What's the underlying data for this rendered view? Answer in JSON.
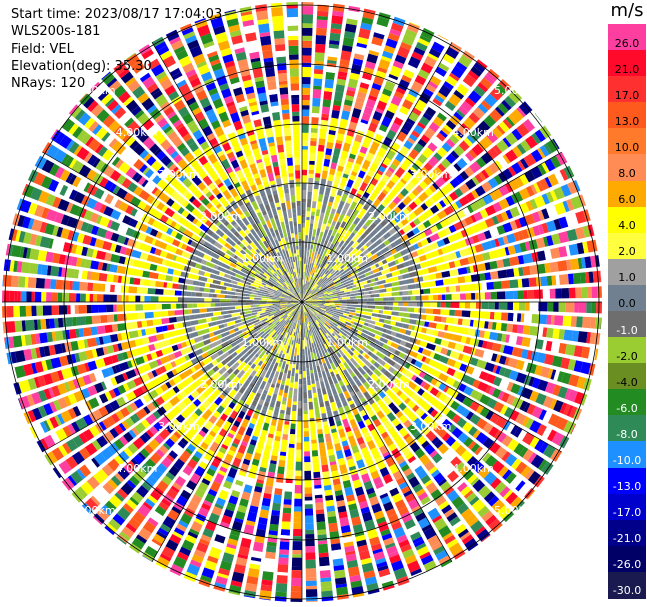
{
  "header": {
    "start_time": "Start time: 2023/08/17 17:04:03",
    "instrument": "WLS200s-181",
    "field": "Field: VEL",
    "elevation": "Elevation(deg): 35.30",
    "nrays": "NRays: 120"
  },
  "colorbar": {
    "unit": "m/s",
    "bands": [
      {
        "label": "26.0",
        "color": "#ff3fa0",
        "text": "#000000"
      },
      {
        "label": "21.0",
        "color": "#ff0a2a",
        "text": "#000000"
      },
      {
        "label": "17.0",
        "color": "#ff3030",
        "text": "#000000"
      },
      {
        "label": "13.0",
        "color": "#ff5a1e",
        "text": "#000000"
      },
      {
        "label": "10.0",
        "color": "#ff7a2a",
        "text": "#000000"
      },
      {
        "label": "8.0",
        "color": "#ff8c55",
        "text": "#000000"
      },
      {
        "label": "6.0",
        "color": "#ffaa00",
        "text": "#000000"
      },
      {
        "label": "4.0",
        "color": "#ffff00",
        "text": "#000000"
      },
      {
        "label": "2.0",
        "color": "#ffff40",
        "text": "#000000"
      },
      {
        "label": "1.0",
        "color": "#a0a0a0",
        "text": "#000000"
      },
      {
        "label": "0.0",
        "color": "#708090",
        "text": "#000000"
      },
      {
        "label": "-1.0",
        "color": "#6e6e6e",
        "text": "#ffffff"
      },
      {
        "label": "-2.0",
        "color": "#9acd32",
        "text": "#000000"
      },
      {
        "label": "-4.0",
        "color": "#6b8e23",
        "text": "#000000"
      },
      {
        "label": "-6.0",
        "color": "#228b22",
        "text": "#ffffff"
      },
      {
        "label": "-8.0",
        "color": "#2e8b57",
        "text": "#ffffff"
      },
      {
        "label": "-10.0",
        "color": "#1e90ff",
        "text": "#ffffff"
      },
      {
        "label": "-13.0",
        "color": "#0000ff",
        "text": "#ffffff"
      },
      {
        "label": "-17.0",
        "color": "#0000cd",
        "text": "#ffffff"
      },
      {
        "label": "-21.0",
        "color": "#00008b",
        "text": "#ffffff"
      },
      {
        "label": "-26.0",
        "color": "#000066",
        "text": "#ffffff"
      },
      {
        "label": "-30.0",
        "color": "#1a1a50",
        "text": "#ffffff"
      }
    ]
  },
  "range_rings": {
    "labels": [
      "1.00km",
      "2.00km",
      "3.00km",
      "4.00km",
      "5.00km"
    ]
  },
  "zones": {
    "inner_colors": [
      "#708090",
      "#708090",
      "#6e6e6e",
      "#9acd32",
      "#a0a0a0",
      "#708090"
    ],
    "mid_colors": [
      "#ffff00",
      "#ffff40",
      "#ffff00",
      "#ffaa00",
      "#ffff00"
    ],
    "outer_colors": [
      "#ff3fa0",
      "#ff0a2a",
      "#ff5a1e",
      "#ffaa00",
      "#ffff00",
      "#9acd32",
      "#228b22",
      "#2e8b57",
      "#1e90ff",
      "#0000ff",
      "#00008b",
      "#ff8c55",
      "#ff3030",
      "#000066"
    ]
  }
}
